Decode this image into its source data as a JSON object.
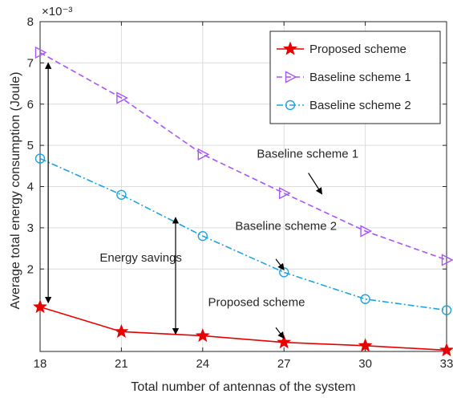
{
  "chart_data": {
    "type": "line",
    "xlabel": "Total number of antennas of the system",
    "ylabel": "Average total energy consumption (Joule)",
    "y_exponent": "×10⁻³",
    "x": [
      18,
      21,
      24,
      27,
      30,
      33
    ],
    "xlim": [
      18,
      33
    ],
    "ylim": [
      0,
      8
    ],
    "x_ticks": [
      18,
      21,
      24,
      27,
      30,
      33
    ],
    "y_ticks": [
      2,
      3,
      4,
      5,
      6,
      7,
      8
    ],
    "grid": true,
    "legend_position": "top-right",
    "series": [
      {
        "name": "Proposed scheme",
        "values": [
          1.08,
          0.48,
          0.38,
          0.22,
          0.14,
          0.03
        ],
        "color": "#e60000",
        "dash": "solid",
        "marker": "star"
      },
      {
        "name": "Baseline scheme 1",
        "values": [
          7.25,
          6.15,
          4.78,
          3.84,
          2.92,
          2.22
        ],
        "color": "#a855f7",
        "dash": "dashed",
        "marker": "triangle-right"
      },
      {
        "name": "Baseline scheme 2",
        "values": [
          4.68,
          3.8,
          2.8,
          1.92,
          1.27,
          1.0
        ],
        "color": "#1fa3e0",
        "dash": "dashdot",
        "marker": "circle"
      }
    ],
    "annotations": [
      {
        "text": "Baseline scheme 1",
        "text_x": 26.0,
        "text_y": 4.7,
        "arrow_from": [
          27.9,
          4.33
        ],
        "arrow_to": [
          28.4,
          3.82
        ]
      },
      {
        "text": "Baseline scheme 2",
        "text_x": 25.2,
        "text_y": 2.95,
        "arrow_from": [
          26.7,
          2.24
        ],
        "arrow_to": [
          27.0,
          1.98
        ]
      },
      {
        "text": "Proposed scheme",
        "text_x": 24.2,
        "text_y": 1.1,
        "arrow_from": [
          26.7,
          0.58
        ],
        "arrow_to": [
          27.0,
          0.32
        ]
      },
      {
        "text": "Energy savings",
        "text_x": 20.2,
        "text_y": 2.18
      }
    ],
    "double_arrows": [
      {
        "x": 18.3,
        "y1": 7.0,
        "y2": 1.18
      },
      {
        "x": 23.0,
        "y1": 3.25,
        "y2": 0.42
      }
    ]
  }
}
